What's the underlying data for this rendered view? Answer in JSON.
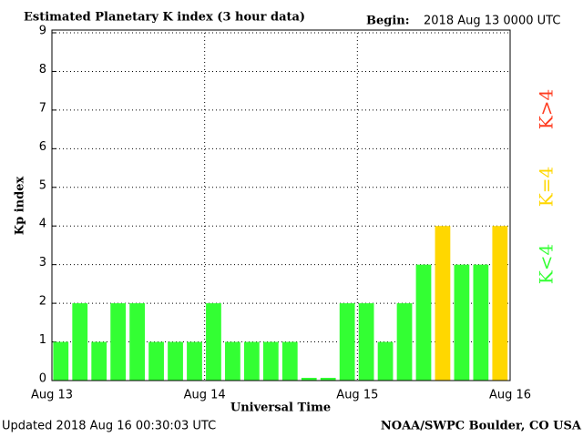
{
  "chart_data": {
    "type": "bar",
    "title": "Estimated Planetary K index (3 hour data)",
    "begin_label": "Begin:",
    "begin": "2018 Aug 13 0000 UTC",
    "ylabel": "Kp index",
    "xlabel": "Universal Time",
    "footer_left": "Updated 2018 Aug 16 00:30:03 UTC",
    "footer_right": "NOAA/SWPC Boulder, CO USA",
    "x": [
      0,
      3,
      6,
      9,
      12,
      15,
      18,
      21,
      24,
      27,
      30,
      33,
      36,
      39,
      42,
      45,
      48,
      51,
      54,
      57,
      60,
      63,
      66,
      69
    ],
    "values": [
      1,
      2,
      1,
      2,
      2,
      1,
      1,
      1,
      2,
      1,
      1,
      1,
      1,
      0,
      0,
      2,
      2,
      1,
      2,
      3,
      4,
      3,
      3,
      4
    ],
    "colors": [
      "#33ff33",
      "#33ff33",
      "#33ff33",
      "#33ff33",
      "#33ff33",
      "#33ff33",
      "#33ff33",
      "#33ff33",
      "#33ff33",
      "#33ff33",
      "#33ff33",
      "#33ff33",
      "#33ff33",
      "#33ff33",
      "#33ff33",
      "#33ff33",
      "#33ff33",
      "#33ff33",
      "#33ff33",
      "#33ff33",
      "#ffd700",
      "#33ff33",
      "#33ff33",
      "#ffd700"
    ],
    "bar_width": 2.4,
    "xlim": [
      0,
      72
    ],
    "xticks": [
      {
        "value": 0,
        "label": "Aug 13"
      },
      {
        "value": 24,
        "label": "Aug 14"
      },
      {
        "value": 48,
        "label": "Aug 15"
      },
      {
        "value": 72,
        "label": "Aug 16"
      }
    ],
    "ylim": [
      0,
      9
    ],
    "yticks": [
      0,
      1,
      2,
      3,
      4,
      5,
      6,
      7,
      8,
      9
    ],
    "grid": true,
    "legend": [
      {
        "label": "K<4",
        "color": "#33ff33"
      },
      {
        "label": "K=4",
        "color": "#ffd700"
      },
      {
        "label": "K>4",
        "color": "#ff3b1f"
      }
    ]
  }
}
